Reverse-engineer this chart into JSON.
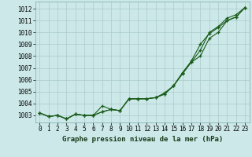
{
  "background_color": "#cce8e8",
  "grid_color": "#aacccc",
  "line_color": "#1a5c1a",
  "title": "Graphe pression niveau de la mer (hPa)",
  "ylabel_vals": [
    1003,
    1004,
    1005,
    1006,
    1007,
    1008,
    1009,
    1010,
    1011,
    1012
  ],
  "xlim": [
    -0.5,
    23.5
  ],
  "ylim": [
    1002.4,
    1012.6
  ],
  "xticks": [
    0,
    1,
    2,
    3,
    4,
    5,
    6,
    7,
    8,
    9,
    10,
    11,
    12,
    13,
    14,
    15,
    16,
    17,
    18,
    19,
    20,
    21,
    22,
    23
  ],
  "series1": [
    1003.2,
    1002.9,
    1003.0,
    1002.7,
    1003.1,
    1003.0,
    1003.0,
    1003.8,
    1003.5,
    1003.4,
    1004.4,
    1004.4,
    1004.4,
    1004.5,
    1004.8,
    1005.5,
    1006.6,
    1007.6,
    1009.0,
    1009.9,
    1010.4,
    1011.0,
    1011.3,
    1012.1
  ],
  "series2": [
    1003.2,
    1002.9,
    1003.0,
    1002.7,
    1003.1,
    1003.0,
    1003.0,
    1003.3,
    1003.5,
    1003.4,
    1004.4,
    1004.4,
    1004.4,
    1004.5,
    1004.8,
    1005.5,
    1006.6,
    1007.5,
    1008.0,
    1009.5,
    1010.0,
    1011.0,
    1011.3,
    1012.1
  ],
  "series3": [
    1003.2,
    1002.9,
    1003.0,
    1002.7,
    1003.1,
    1003.0,
    1003.0,
    1003.3,
    1003.5,
    1003.4,
    1004.4,
    1004.4,
    1004.4,
    1004.5,
    1004.9,
    1005.5,
    1006.5,
    1007.5,
    1008.5,
    1010.0,
    1010.5,
    1011.2,
    1011.5,
    1012.1
  ],
  "tick_fontsize": 5.5,
  "xlabel_fontsize": 6.5,
  "linewidth": 0.8,
  "markersize": 3.0,
  "markeredgewidth": 0.9
}
